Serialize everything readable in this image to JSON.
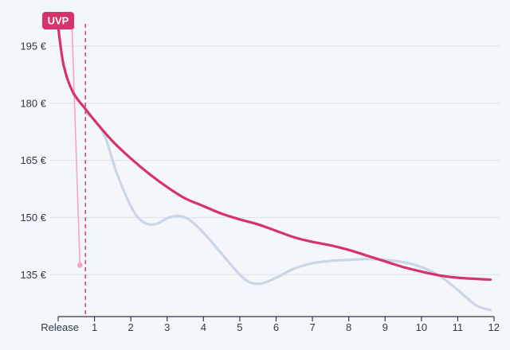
{
  "chart_data": {
    "type": "line",
    "y_axis": {
      "ticks": [
        135,
        150,
        165,
        180,
        195
      ],
      "tick_labels": [
        "135 €",
        "150 €",
        "165 €",
        "180 €",
        "195 €"
      ],
      "range": [
        124,
        205
      ],
      "grid": true
    },
    "x_axis": {
      "ticks": [
        0,
        1,
        2,
        3,
        4,
        5,
        6,
        7,
        8,
        9,
        10,
        11,
        12
      ],
      "tick_labels": [
        "Release",
        "1",
        "2",
        "3",
        "4",
        "5",
        "6",
        "7",
        "8",
        "9",
        "10",
        "11",
        "12"
      ],
      "range": [
        0,
        12
      ]
    },
    "marker": {
      "x": 0.75,
      "style": "dashed"
    },
    "badge": {
      "label": "UVP"
    },
    "series": [
      {
        "id": "trend",
        "color": "#d6336c",
        "values": [
          [
            0,
            200
          ],
          [
            0.15,
            190
          ],
          [
            0.4,
            183
          ],
          [
            0.75,
            178.5
          ],
          [
            1,
            175.5
          ],
          [
            1.5,
            170
          ],
          [
            2,
            165.5
          ],
          [
            2.5,
            161.5
          ],
          [
            3,
            158
          ],
          [
            3.5,
            155
          ],
          [
            4,
            153
          ],
          [
            4.5,
            151
          ],
          [
            5,
            149.5
          ],
          [
            5.5,
            148.2
          ],
          [
            6,
            146.5
          ],
          [
            6.5,
            144.8
          ],
          [
            7,
            143.6
          ],
          [
            7.5,
            142.7
          ],
          [
            8,
            141.5
          ],
          [
            8.5,
            140
          ],
          [
            9,
            138.5
          ],
          [
            9.5,
            137
          ],
          [
            10,
            135.8
          ],
          [
            10.5,
            134.8
          ],
          [
            11,
            134.2
          ],
          [
            11.5,
            133.9
          ],
          [
            11.9,
            133.7
          ]
        ]
      },
      {
        "id": "price",
        "color": "#c8d6e5",
        "values": [
          [
            0.75,
            177.5
          ],
          [
            1,
            175.5
          ],
          [
            1.3,
            171
          ],
          [
            1.6,
            162
          ],
          [
            2,
            153
          ],
          [
            2.25,
            149.5
          ],
          [
            2.5,
            148.2
          ],
          [
            2.75,
            148.5
          ],
          [
            3,
            149.8
          ],
          [
            3.3,
            150.4
          ],
          [
            3.6,
            149.5
          ],
          [
            4,
            146
          ],
          [
            4.5,
            140.5
          ],
          [
            5,
            135
          ],
          [
            5.3,
            132.9
          ],
          [
            5.6,
            132.7
          ],
          [
            6,
            134.2
          ],
          [
            6.5,
            136.6
          ],
          [
            7,
            138
          ],
          [
            7.5,
            138.6
          ],
          [
            8,
            138.9
          ],
          [
            8.5,
            139.1
          ],
          [
            9,
            138.9
          ],
          [
            9.5,
            138.3
          ],
          [
            10,
            137
          ],
          [
            10.5,
            134.7
          ],
          [
            11,
            131
          ],
          [
            11.5,
            127
          ],
          [
            11.9,
            125.7
          ]
        ]
      },
      {
        "id": "launch",
        "color": "#f4a6c1",
        "values": [
          [
            0.15,
            200
          ],
          [
            0.38,
            200
          ],
          [
            0.6,
            137.5
          ]
        ]
      }
    ]
  }
}
